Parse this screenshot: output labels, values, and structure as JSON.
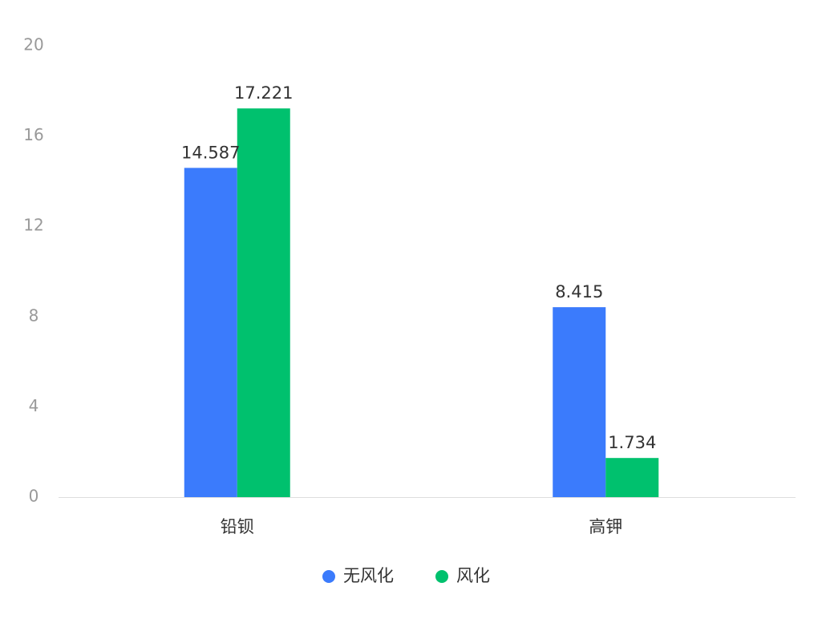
{
  "chart_data": {
    "type": "bar",
    "categories": [
      "铅钡",
      "高钾"
    ],
    "series": [
      {
        "name": "无风化",
        "values": [
          14.587,
          8.415
        ],
        "color": "#3B7BFC"
      },
      {
        "name": "风化",
        "values": [
          17.221,
          1.734
        ],
        "color": "#00C16E"
      }
    ],
    "ylim": [
      0,
      20
    ],
    "yticks": [
      "0",
      "4",
      "8",
      "12",
      "16",
      "20"
    ],
    "data_labels": [
      [
        "14.587",
        "8.415"
      ],
      [
        "17.221",
        "1.734"
      ]
    ],
    "legend_position": "bottom-center",
    "grid": false,
    "axis_color": "#dddddd"
  }
}
